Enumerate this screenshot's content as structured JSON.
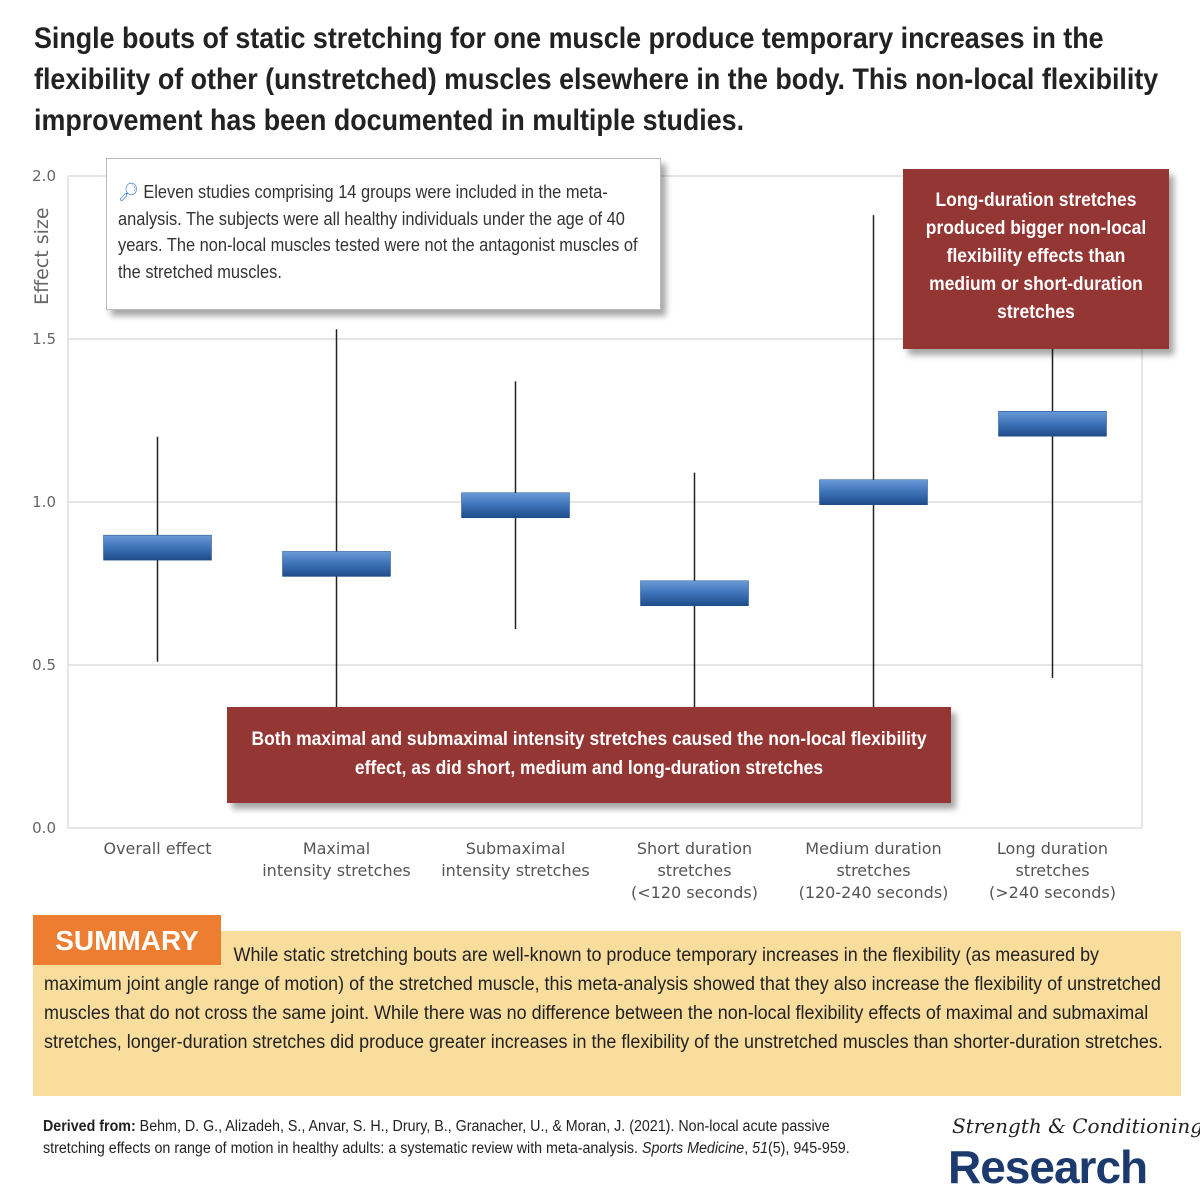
{
  "title": "Single bouts of static stretching for one muscle produce temporary increases in the flexibility of other (unstretched) muscles elsewhere in the body. This non-local flexibility improvement has been documented in multiple studies.",
  "chart_data": {
    "type": "forest-interval",
    "ylabel": "Effect size",
    "ylim": [
      0,
      2.0
    ],
    "yticks": [
      "0.0",
      "0.5",
      "1.0",
      "1.5",
      "2.0"
    ],
    "grid": true,
    "categories": [
      "Overall effect",
      "Maximal intensity stretches",
      "Submaximal intensity stretches",
      "Short duration stretches (<120 seconds)",
      "Medium duration stretches (120-240 seconds)",
      "Long duration stretches (>240 seconds)"
    ],
    "category_lines": [
      [
        "Overall effect"
      ],
      [
        "Maximal",
        "intensity stretches"
      ],
      [
        "Submaximal",
        "intensity stretches"
      ],
      [
        "Short duration",
        "stretches",
        "(<120 seconds)"
      ],
      [
        "Medium duration",
        "stretches",
        "(120-240 seconds)"
      ],
      [
        "Long duration",
        "stretches",
        "(>240 seconds)"
      ]
    ],
    "estimates": [
      0.86,
      0.81,
      0.99,
      0.72,
      1.03,
      1.24
    ],
    "ci_low": [
      0.51,
      0.3,
      0.61,
      0.3,
      0.2,
      0.46
    ],
    "ci_high": [
      1.2,
      1.53,
      1.37,
      1.09,
      1.88,
      1.5
    ]
  },
  "note": "Eleven studies comprising 14 groups were included in the meta-analysis. The subjects were all healthy individuals under the age of 40 years. The non-local muscles tested were not the antagonist muscles of the stretched muscles.",
  "callout_long": "Long-duration stretches produced bigger non-local flexibility effects than medium or short-duration stretches",
  "callout_both": "Both maximal and submaximal intensity stretches caused the non-local flexibility effect, as did short, medium and long-duration stretches",
  "summary": {
    "label": "SUMMARY",
    "text": "While static stretching bouts are well-known to produce temporary increases in the flexibility (as measured by maximum joint angle range of motion) of the stretched muscle, this meta-analysis showed that they also increase the flexibility of unstretched muscles that do not cross the same joint. While there was no difference between the non-local flexibility effects of maximal and submaximal stretches, longer-duration stretches did produce greater increases in the flexibility of the unstretched muscles than shorter-duration stretches."
  },
  "citation": {
    "label": "Derived from:",
    "text": "Behm, D. G., Alizadeh, S., Anvar, S. H., Drury, B., Granacher, U., & Moran, J. (2021). Non-local acute passive stretching effects on range of motion in healthy adults: a systematic review with meta-analysis.",
    "journal": "Sports Medicine",
    "volume": "51",
    "issue_pages": "(5), 945-959."
  },
  "logo": {
    "line1": "Strength & Conditioning",
    "line2": "Research"
  },
  "colors": {
    "accent": "#943634",
    "summary_label": "#ed7d31",
    "summary_bg": "#f8dd9d",
    "bar": "#3d72b8"
  }
}
